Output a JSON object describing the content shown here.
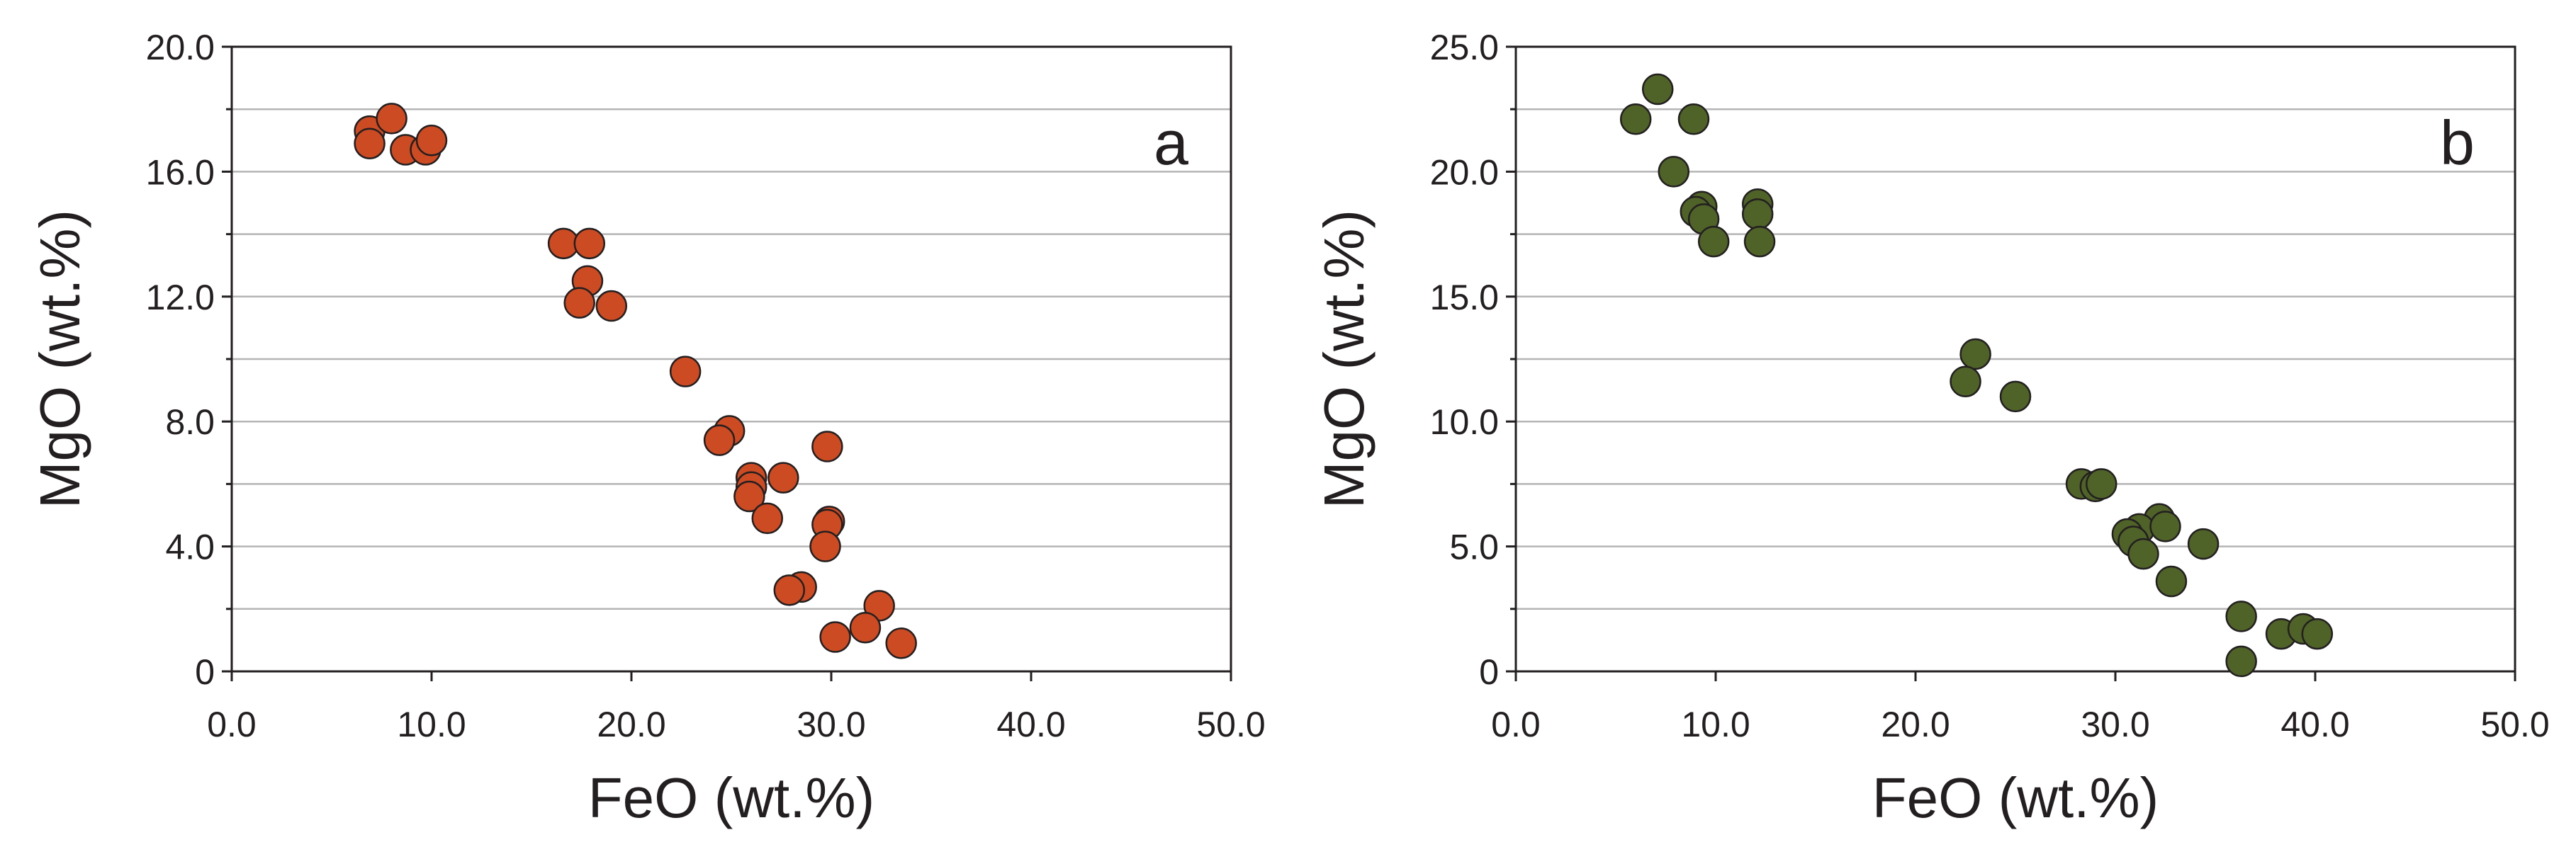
{
  "chart_data": [
    {
      "type": "scatter",
      "panel_label": "a",
      "xlabel": "FeO (wt.%)",
      "ylabel": "MgO (wt.%)",
      "xlim": [
        0,
        50
      ],
      "ylim": [
        0,
        20
      ],
      "xticks": [
        "0.0",
        "10.0",
        "20.0",
        "30.0",
        "40.0",
        "50.0"
      ],
      "yticks": [
        "0",
        "4.0",
        "8.0",
        "12.0",
        "16.0",
        "20.0"
      ],
      "ytick_values": [
        0,
        4,
        8,
        12,
        16,
        20
      ],
      "grid": "horizontal",
      "marker_color": "#cc4b22",
      "series": [
        {
          "name": "a",
          "points": [
            [
              6.9,
              17.3
            ],
            [
              8.0,
              17.7
            ],
            [
              6.9,
              16.9
            ],
            [
              8.7,
              16.7
            ],
            [
              9.7,
              16.7
            ],
            [
              10.0,
              17.0
            ],
            [
              16.6,
              13.7
            ],
            [
              17.9,
              13.7
            ],
            [
              17.8,
              12.5
            ],
            [
              17.4,
              11.8
            ],
            [
              19.0,
              11.7
            ],
            [
              22.7,
              9.6
            ],
            [
              24.9,
              7.7
            ],
            [
              24.4,
              7.4
            ],
            [
              29.8,
              7.2
            ],
            [
              26.0,
              6.2
            ],
            [
              27.6,
              6.2
            ],
            [
              26.0,
              5.9
            ],
            [
              25.9,
              5.6
            ],
            [
              26.8,
              4.9
            ],
            [
              29.9,
              4.8
            ],
            [
              29.8,
              4.7
            ],
            [
              29.7,
              4.0
            ],
            [
              28.5,
              2.7
            ],
            [
              27.9,
              2.6
            ],
            [
              32.4,
              2.1
            ],
            [
              31.7,
              1.4
            ],
            [
              30.2,
              1.1
            ],
            [
              33.5,
              0.9
            ]
          ]
        }
      ]
    },
    {
      "type": "scatter",
      "panel_label": "b",
      "xlabel": "FeO (wt.%)",
      "ylabel": "MgO (wt.%)",
      "xlim": [
        0,
        50
      ],
      "ylim": [
        0,
        25
      ],
      "xticks": [
        "0.0",
        "10.0",
        "20.0",
        "30.0",
        "40.0",
        "50.0"
      ],
      "yticks": [
        "0",
        "5.0",
        "10.0",
        "15.0",
        "20.0",
        "25.0"
      ],
      "ytick_values": [
        0,
        5,
        10,
        15,
        20,
        25
      ],
      "grid": "horizontal",
      "marker_color": "#4f6228",
      "series": [
        {
          "name": "b",
          "points": [
            [
              7.1,
              23.3
            ],
            [
              6.0,
              22.1
            ],
            [
              8.9,
              22.1
            ],
            [
              7.9,
              20.0
            ],
            [
              9.3,
              18.6
            ],
            [
              9.0,
              18.4
            ],
            [
              9.4,
              18.1
            ],
            [
              9.9,
              17.2
            ],
            [
              12.1,
              18.7
            ],
            [
              12.1,
              18.3
            ],
            [
              12.2,
              17.2
            ],
            [
              23.0,
              12.7
            ],
            [
              22.5,
              11.6
            ],
            [
              25.0,
              11.0
            ],
            [
              28.3,
              7.5
            ],
            [
              29.0,
              7.4
            ],
            [
              29.3,
              7.5
            ],
            [
              32.2,
              6.1
            ],
            [
              31.2,
              5.7
            ],
            [
              32.5,
              5.8
            ],
            [
              30.6,
              5.5
            ],
            [
              30.9,
              5.2
            ],
            [
              31.4,
              4.7
            ],
            [
              34.4,
              5.1
            ],
            [
              32.8,
              3.6
            ],
            [
              36.3,
              2.2
            ],
            [
              38.3,
              1.5
            ],
            [
              39.4,
              1.7
            ],
            [
              40.1,
              1.5
            ],
            [
              36.3,
              0.4
            ]
          ]
        }
      ]
    }
  ]
}
